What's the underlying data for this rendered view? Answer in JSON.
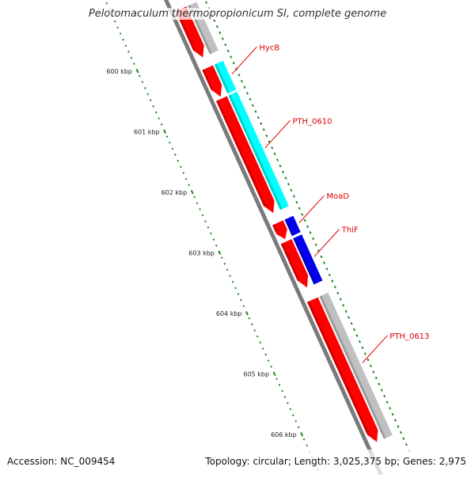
{
  "title": "Pelotomaculum thermopropionicum SI, complete genome",
  "footer": {
    "accession": "Accession: NC_009454",
    "summary": "Topology: circular; Length: 3,025,375 bp; Genes: 2,975"
  },
  "colors": {
    "backbone": "#7a7a7a",
    "forward_gene": "#ff0000",
    "reverse_gene": "#c0c0c0",
    "cyan_feature": "#00ffff",
    "blue_feature": "#0000ee",
    "tick": "#228b22",
    "gene_label": "#dd0000"
  },
  "ruler": {
    "unit": "kbp",
    "ticks": [
      {
        "label": "600 kbp",
        "pos": 600.0
      },
      {
        "label": "601 kbp",
        "pos": 601.0
      },
      {
        "label": "602 kbp",
        "pos": 602.0
      },
      {
        "label": "603 kbp",
        "pos": 603.0
      },
      {
        "label": "604 kbp",
        "pos": 604.0
      },
      {
        "label": "605 kbp",
        "pos": 605.0
      },
      {
        "label": "606 kbp",
        "pos": 606.0
      }
    ]
  },
  "features": [
    {
      "name": "",
      "ring": 1,
      "start": 599.45,
      "end": 600.25,
      "strand": 1,
      "color": "#ff0000"
    },
    {
      "name": "",
      "ring": 1,
      "start": 600.42,
      "end": 600.9,
      "strand": 1,
      "color": "#ff0000"
    },
    {
      "name": "",
      "ring": 1,
      "start": 600.93,
      "end": 602.82,
      "strand": 1,
      "color": "#ff0000"
    },
    {
      "name": "",
      "ring": 1,
      "start": 602.98,
      "end": 603.25,
      "strand": 1,
      "color": "#ff0000"
    },
    {
      "name": "",
      "ring": 1,
      "start": 603.29,
      "end": 604.05,
      "strand": 1,
      "color": "#ff0000"
    },
    {
      "name": "",
      "ring": 1,
      "start": 604.25,
      "end": 606.6,
      "strand": 1,
      "color": "#ff0000"
    },
    {
      "name": "",
      "ring": 2,
      "start": 599.45,
      "end": 600.25,
      "strand": 0,
      "color": "#c0c0c0"
    },
    {
      "name": "HycB",
      "ring": 2,
      "start": 600.42,
      "end": 600.9,
      "strand": 0,
      "color": "#00ffff"
    },
    {
      "name": "PTH_0610",
      "ring": 2,
      "start": 600.93,
      "end": 602.82,
      "strand": 0,
      "color": "#00ffff"
    },
    {
      "name": "MoaD",
      "ring": 2,
      "start": 602.98,
      "end": 603.25,
      "strand": 0,
      "color": "#0000ee"
    },
    {
      "name": "ThiF",
      "ring": 2,
      "start": 603.29,
      "end": 604.05,
      "strand": 0,
      "color": "#0000ee"
    },
    {
      "name": "PTH_0613",
      "ring": 2,
      "start": 604.25,
      "end": 606.6,
      "strand": 0,
      "color": "#c0c0c0"
    }
  ]
}
